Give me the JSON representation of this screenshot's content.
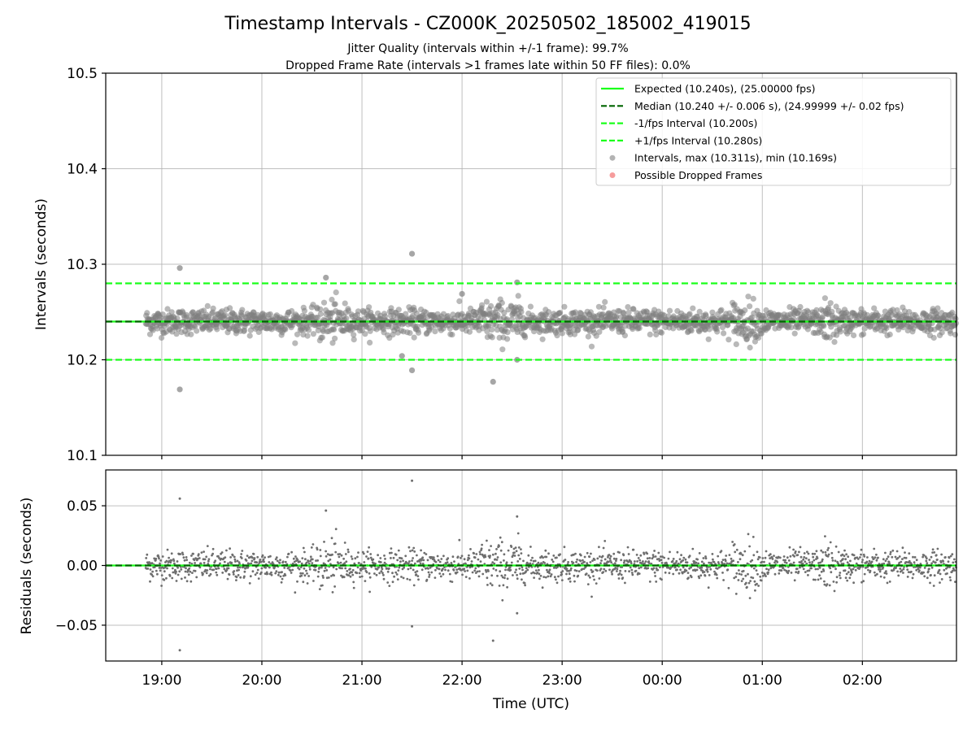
{
  "chart_data": {
    "title": "Timestamp Intervals - CZ000K_20250502_185002_419015",
    "subtitle_lines": [
      "Jitter Quality (intervals within +/-1 frame): 99.7%",
      "Dropped Frame Rate (intervals >1 frames late within 50 FF files): 0.0%"
    ],
    "xlabel": "Time (UTC)",
    "x_tick_labels": [
      "19:00",
      "20:00",
      "21:00",
      "22:00",
      "23:00",
      "00:00",
      "01:00",
      "02:00"
    ],
    "xlim_hours": [
      18.44,
      26.94
    ],
    "data_start_hour": 18.84,
    "panels": [
      {
        "type": "scatter",
        "ylabel": "Intervals (seconds)",
        "ylim": [
          10.1,
          10.5
        ],
        "yticks": [
          10.1,
          10.2,
          10.3,
          10.4,
          10.5
        ],
        "ytick_labels": [
          "10.1",
          "10.2",
          "10.3",
          "10.4",
          "10.5"
        ],
        "grid": true,
        "legend_position": "top-right",
        "lines": [
          {
            "name": "Expected (10.240s), (25.00000 fps)",
            "y": 10.24,
            "color": "#1aff1a",
            "style": "solid"
          },
          {
            "name": "Median (10.240 +/- 0.006 s), (24.99999 +/- 0.02 fps)",
            "y": 10.24,
            "color": "#006400",
            "style": "dashed"
          },
          {
            "name": "-1/fps Interval (10.200s)",
            "y": 10.2,
            "color": "#1aff1a",
            "style": "dashed"
          },
          {
            "name": "+1/fps Interval (10.280s)",
            "y": 10.28,
            "color": "#1aff1a",
            "style": "dashed"
          }
        ],
        "scatter_series": [
          {
            "name": "Intervals, max (10.311s), min (10.169s)",
            "color": "#808080",
            "marker": "circle"
          },
          {
            "name": "Possible Dropped Frames",
            "color": "#f05a5a",
            "marker": "circle"
          }
        ],
        "outliers": [
          {
            "x": 19.18,
            "y": 10.296
          },
          {
            "x": 19.18,
            "y": 10.169
          },
          {
            "x": 20.64,
            "y": 10.286
          },
          {
            "x": 21.5,
            "y": 10.311
          },
          {
            "x": 21.5,
            "y": 10.189
          },
          {
            "x": 22.31,
            "y": 10.177
          },
          {
            "x": 22.55,
            "y": 10.281
          },
          {
            "x": 22.55,
            "y": 10.2
          },
          {
            "x": 21.4,
            "y": 10.204
          },
          {
            "x": 22.0,
            "y": 10.269
          }
        ]
      },
      {
        "type": "scatter",
        "ylabel": "Residuals (seconds)",
        "ylim": [
          -0.08,
          0.08
        ],
        "yticks": [
          -0.05,
          0.0,
          0.05
        ],
        "ytick_labels": [
          "−0.05",
          "0.00",
          "0.05"
        ],
        "grid": true,
        "zero_lines": [
          {
            "y": 0.0,
            "color": "#1aff1a",
            "style": "solid"
          },
          {
            "y": 0.0,
            "color": "#006400",
            "style": "dashed"
          }
        ],
        "outliers": [
          {
            "x": 19.18,
            "y": 0.056
          },
          {
            "x": 19.18,
            "y": -0.071
          },
          {
            "x": 20.64,
            "y": 0.046
          },
          {
            "x": 21.5,
            "y": 0.071
          },
          {
            "x": 21.5,
            "y": -0.051
          },
          {
            "x": 22.31,
            "y": -0.063
          },
          {
            "x": 22.55,
            "y": 0.041
          },
          {
            "x": 22.55,
            "y": -0.04
          }
        ]
      }
    ]
  }
}
